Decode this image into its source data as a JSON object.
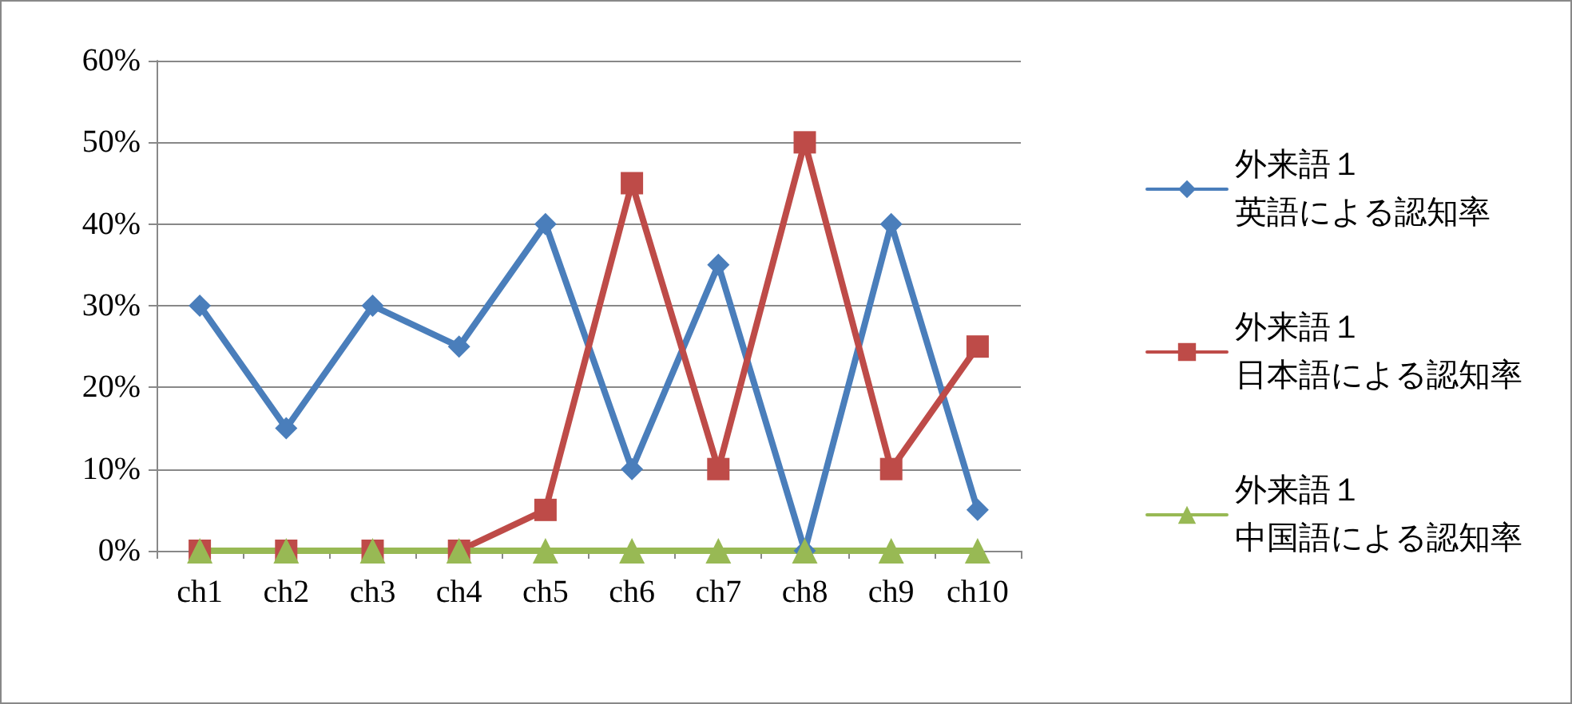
{
  "chart_data": {
    "type": "line",
    "categories": [
      "ch1",
      "ch2",
      "ch3",
      "ch4",
      "ch5",
      "ch6",
      "ch7",
      "ch8",
      "ch9",
      "ch10"
    ],
    "series": [
      {
        "name": "外来語１英語による認知率",
        "color": "#4a7ebb",
        "marker": "diamond",
        "values": [
          30,
          15,
          30,
          25,
          40,
          10,
          35,
          0,
          40,
          5
        ]
      },
      {
        "name": "外来語１日本語による認知率",
        "color": "#be4b48",
        "marker": "square",
        "values": [
          0,
          0,
          0,
          0,
          5,
          45,
          10,
          50,
          10,
          25
        ]
      },
      {
        "name": "外来語１中国語による認知率",
        "color": "#98b954",
        "marker": "triangle",
        "values": [
          0,
          0,
          0,
          0,
          0,
          0,
          0,
          0,
          0,
          0
        ]
      }
    ],
    "ylim": [
      0,
      60
    ],
    "yticks": [
      {
        "value": 0,
        "label": "0%"
      },
      {
        "value": 10,
        "label": "10%"
      },
      {
        "value": 20,
        "label": "20%"
      },
      {
        "value": 30,
        "label": "30%"
      },
      {
        "value": 40,
        "label": "40%"
      },
      {
        "value": 50,
        "label": "50%"
      },
      {
        "value": 60,
        "label": "60%"
      }
    ],
    "grid": "y",
    "legend": "right",
    "line_style": "solid"
  }
}
